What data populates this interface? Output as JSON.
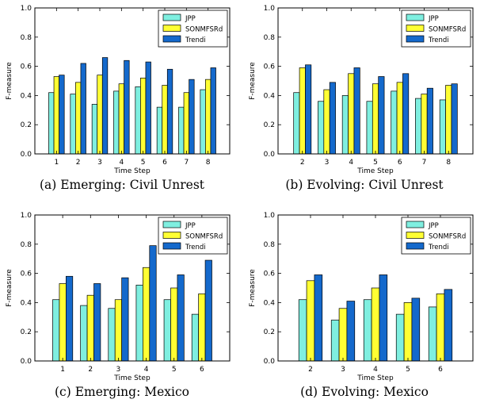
{
  "colors": {
    "JPP": "#7fefe0",
    "SONMFSRd": "#ffff33",
    "Trendi": "#1469cc"
  },
  "chart_data": [
    {
      "type": "bar",
      "caption": "(a) Emerging: Civil Unrest",
      "xlabel": "Time Step",
      "ylabel": "F-measure",
      "ylim": [
        0,
        1.0
      ],
      "yticks": [
        "0.0",
        "0.2",
        "0.4",
        "0.6",
        "0.8",
        "1.0"
      ],
      "categories": [
        "1",
        "2",
        "3",
        "4",
        "5",
        "6",
        "7",
        "8"
      ],
      "series": [
        {
          "name": "JPP",
          "values": [
            0.42,
            0.41,
            0.34,
            0.43,
            0.46,
            0.32,
            0.32,
            0.44
          ]
        },
        {
          "name": "SONMFSRd",
          "values": [
            0.53,
            0.49,
            0.54,
            0.48,
            0.52,
            0.47,
            0.42,
            0.51
          ]
        },
        {
          "name": "Trendi",
          "values": [
            0.54,
            0.62,
            0.66,
            0.64,
            0.63,
            0.58,
            0.51,
            0.59
          ]
        }
      ],
      "legend": "top-right",
      "grid": false
    },
    {
      "type": "bar",
      "caption": "(b) Evolving: Civil Unrest",
      "xlabel": "Time Step",
      "ylabel": "F-measure",
      "ylim": [
        0,
        1.0
      ],
      "yticks": [
        "0.0",
        "0.2",
        "0.4",
        "0.6",
        "0.8",
        "1.0"
      ],
      "categories": [
        "2",
        "3",
        "4",
        "5",
        "6",
        "7",
        "8"
      ],
      "series": [
        {
          "name": "JPP",
          "values": [
            0.42,
            0.36,
            0.4,
            0.36,
            0.43,
            0.38,
            0.37
          ]
        },
        {
          "name": "SONMFSRd",
          "values": [
            0.59,
            0.44,
            0.55,
            0.48,
            0.49,
            0.41,
            0.47
          ]
        },
        {
          "name": "Trendi",
          "values": [
            0.61,
            0.49,
            0.59,
            0.53,
            0.55,
            0.45,
            0.48
          ]
        }
      ],
      "legend": "top-right",
      "grid": false
    },
    {
      "type": "bar",
      "caption": "(c) Emerging: Mexico",
      "xlabel": "Time Step",
      "ylabel": "F-measure",
      "ylim": [
        0,
        1.0
      ],
      "yticks": [
        "0.0",
        "0.2",
        "0.4",
        "0.6",
        "0.8",
        "1.0"
      ],
      "categories": [
        "1",
        "2",
        "3",
        "4",
        "5",
        "6"
      ],
      "series": [
        {
          "name": "JPP",
          "values": [
            0.42,
            0.38,
            0.36,
            0.52,
            0.42,
            0.32
          ]
        },
        {
          "name": "SONMFSRd",
          "values": [
            0.53,
            0.45,
            0.42,
            0.64,
            0.5,
            0.46
          ]
        },
        {
          "name": "Trendi",
          "values": [
            0.58,
            0.53,
            0.57,
            0.79,
            0.59,
            0.69
          ]
        }
      ],
      "legend": "top-right",
      "grid": false
    },
    {
      "type": "bar",
      "caption": "(d) Evolving: Mexico",
      "xlabel": "Time Step",
      "ylabel": "F-measure",
      "ylim": [
        0,
        1.0
      ],
      "yticks": [
        "0.0",
        "0.2",
        "0.4",
        "0.6",
        "0.8",
        "1.0"
      ],
      "categories": [
        "2",
        "3",
        "4",
        "5",
        "6"
      ],
      "series": [
        {
          "name": "JPP",
          "values": [
            0.42,
            0.28,
            0.42,
            0.32,
            0.37
          ]
        },
        {
          "name": "SONMFSRd",
          "values": [
            0.55,
            0.36,
            0.5,
            0.4,
            0.46
          ]
        },
        {
          "name": "Trendi",
          "values": [
            0.59,
            0.41,
            0.59,
            0.43,
            0.49
          ]
        }
      ],
      "legend": "top-right",
      "grid": false
    }
  ]
}
